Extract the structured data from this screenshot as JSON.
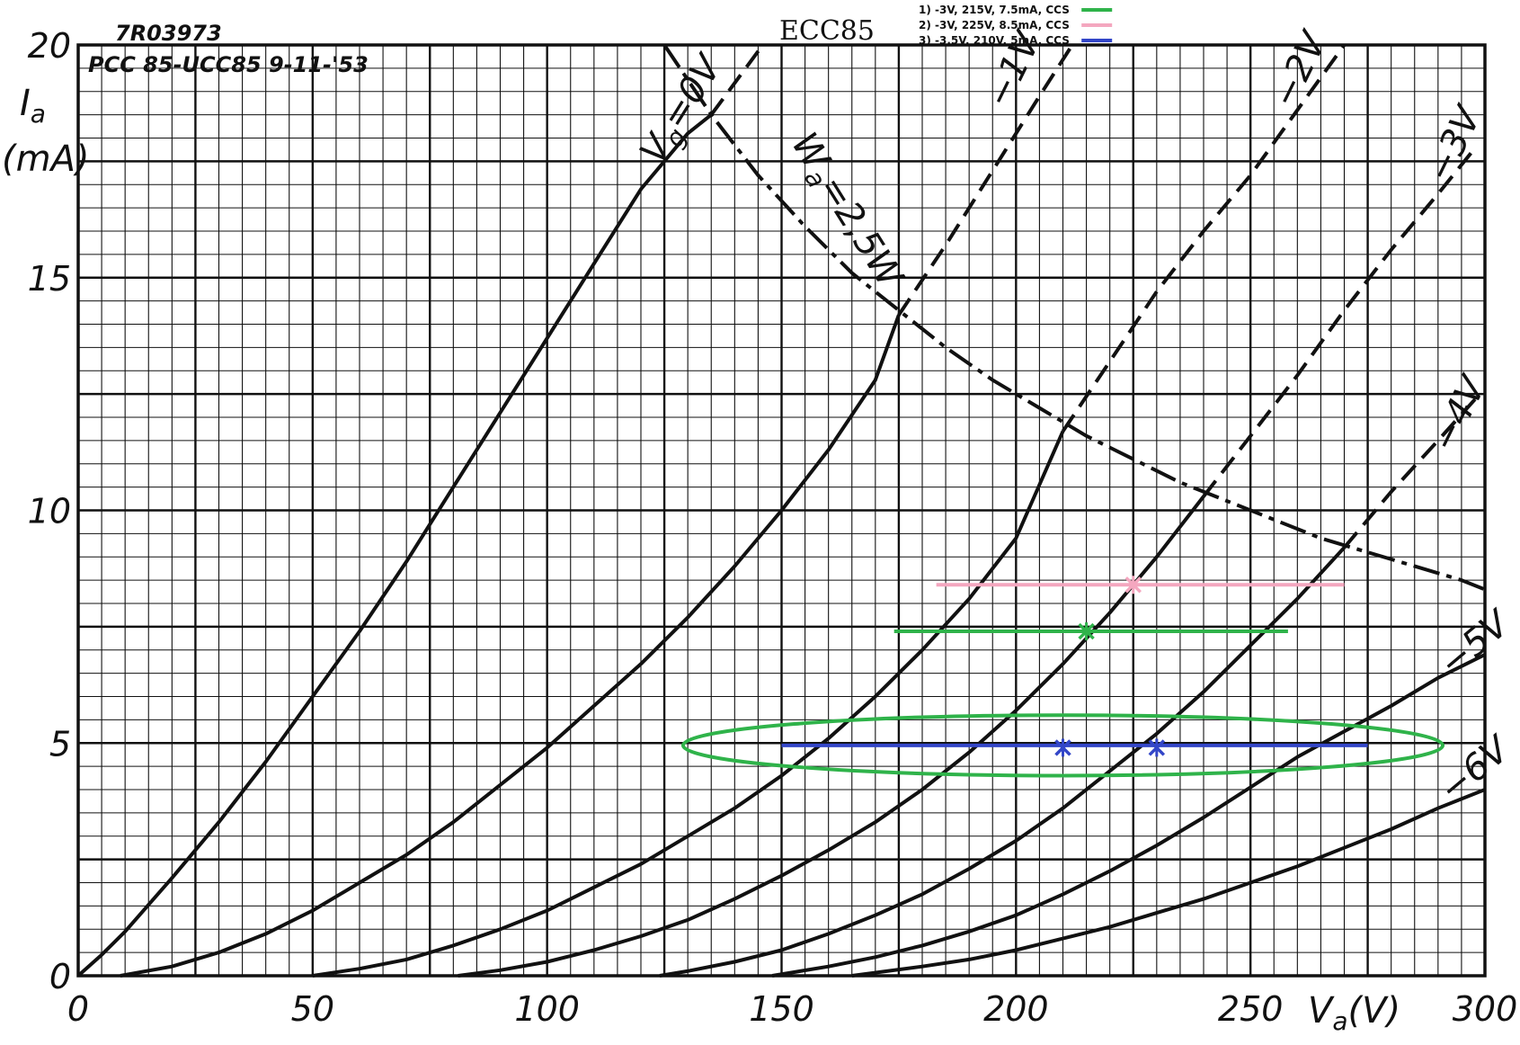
{
  "chart_data": {
    "type": "line",
    "title": "ECC85",
    "stamp": [
      "7R03973",
      "PCC 85-UCC85 9-11-'53"
    ],
    "xlabel": "V_a(V)",
    "ylabel": "I_a (mA)",
    "ylabel_symbol": "I",
    "ylabel_sub": "a",
    "ylabel_unit": "(mA)",
    "xlabel_symbol": "V",
    "xlabel_sub": "a",
    "xlabel_unit": "(V)",
    "xlim": [
      0,
      300
    ],
    "ylim": [
      0,
      20
    ],
    "x_ticks": [
      0,
      50,
      100,
      150,
      200,
      250,
      300
    ],
    "y_ticks": [
      0,
      5,
      10,
      15,
      20
    ],
    "x_tick_labels": [
      "0",
      "50",
      "100",
      "150",
      "200",
      "250",
      "300"
    ],
    "y_tick_labels": [
      "0",
      "5",
      "10",
      "15",
      "20"
    ],
    "grid": {
      "minor_x_step": 5,
      "minor_y_step": 0.5,
      "major_x_step": 25,
      "major_y_step": 2.5
    },
    "series": [
      {
        "name": "Vg=0V",
        "label_main": "V",
        "label_sub": "g",
        "label_rest": "=0V",
        "label_at": [
          124,
          17.4
        ],
        "label_angle": -58,
        "solid_x": [
          0,
          5,
          10,
          20,
          30,
          40,
          50,
          60,
          70,
          80,
          90,
          100,
          110,
          120,
          130,
          135
        ],
        "solid_y": [
          0,
          0.45,
          0.95,
          2.1,
          3.3,
          4.6,
          6.0,
          7.4,
          8.9,
          10.5,
          12.1,
          13.7,
          15.3,
          16.9,
          18.1,
          18.5
        ],
        "dashed_x": [
          135,
          146
        ],
        "dashed_y": [
          18.5,
          20.0
        ]
      },
      {
        "name": "-1V",
        "label_main": "−1V",
        "label_at": [
          198,
          18.6
        ],
        "label_angle": -64,
        "solid_x": [
          9,
          20,
          30,
          40,
          50,
          60,
          70,
          80,
          90,
          100,
          110,
          120,
          130,
          140,
          150,
          160,
          170,
          175
        ],
        "solid_y": [
          0,
          0.2,
          0.5,
          0.9,
          1.4,
          2.0,
          2.6,
          3.3,
          4.1,
          4.9,
          5.8,
          6.7,
          7.7,
          8.8,
          10.0,
          11.3,
          12.8,
          14.2
        ],
        "dashed_x": [
          175,
          185,
          195,
          205,
          212
        ],
        "dashed_y": [
          14.2,
          15.7,
          17.3,
          18.9,
          20.0
        ]
      },
      {
        "name": "-2V",
        "label_main": "−2V",
        "label_at": [
          259,
          18.6
        ],
        "label_angle": -64,
        "solid_x": [
          50,
          60,
          70,
          80,
          90,
          100,
          110,
          120,
          130,
          140,
          150,
          160,
          170,
          180,
          190,
          200,
          210
        ],
        "solid_y": [
          0,
          0.15,
          0.35,
          0.65,
          1.0,
          1.4,
          1.9,
          2.4,
          3.0,
          3.6,
          4.3,
          5.1,
          6.0,
          7.0,
          8.1,
          9.4,
          11.7
        ],
        "dashed_x": [
          210,
          220,
          230,
          240,
          250,
          260,
          270
        ],
        "dashed_y": [
          11.7,
          13.2,
          14.7,
          16.0,
          17.2,
          18.6,
          20.0
        ]
      },
      {
        "name": "-3V",
        "label_main": "−3V",
        "label_at": [
          292,
          17.0
        ],
        "label_angle": -64,
        "solid_x": [
          81,
          90,
          100,
          110,
          120,
          130,
          140,
          150,
          160,
          170,
          180,
          190,
          200,
          210,
          220,
          230,
          240
        ],
        "solid_y": [
          0,
          0.12,
          0.3,
          0.55,
          0.85,
          1.2,
          1.65,
          2.15,
          2.7,
          3.3,
          4.0,
          4.8,
          5.7,
          6.7,
          7.8,
          9.0,
          10.3
        ],
        "dashed_x": [
          240,
          250,
          260,
          270,
          280,
          290,
          298
        ],
        "dashed_y": [
          10.3,
          11.6,
          12.9,
          14.3,
          15.6,
          16.8,
          17.8
        ]
      },
      {
        "name": "-4V",
        "label_main": "−4V",
        "label_at": [
          293,
          11.2
        ],
        "label_angle": -64,
        "solid_x": [
          124,
          130,
          140,
          150,
          160,
          170,
          180,
          190,
          200,
          210,
          220,
          230,
          240,
          250,
          260,
          270
        ],
        "solid_y": [
          0,
          0.1,
          0.3,
          0.55,
          0.9,
          1.3,
          1.75,
          2.3,
          2.9,
          3.6,
          4.4,
          5.2,
          6.1,
          7.1,
          8.1,
          9.2
        ],
        "dashed_x": [
          270,
          280,
          290,
          298
        ],
        "dashed_y": [
          9.2,
          10.4,
          11.5,
          12.4
        ]
      },
      {
        "name": "-5V",
        "label_main": "−5V",
        "label_at": [
          293,
          6.4
        ],
        "label_angle": -40,
        "solid_x": [
          148,
          160,
          170,
          180,
          190,
          200,
          210,
          220,
          230,
          240,
          250,
          260,
          270,
          280,
          290,
          300
        ],
        "solid_y": [
          0,
          0.2,
          0.4,
          0.65,
          0.95,
          1.3,
          1.75,
          2.25,
          2.8,
          3.4,
          4.05,
          4.7,
          5.25,
          5.8,
          6.4,
          6.9
        ],
        "dashed_x": [],
        "dashed_y": []
      },
      {
        "name": "-6V",
        "label_main": "−6V",
        "label_at": [
          293,
          3.7
        ],
        "label_angle": -40,
        "solid_x": [
          165,
          180,
          190,
          200,
          210,
          220,
          230,
          240,
          250,
          260,
          270,
          280,
          290,
          300
        ],
        "solid_y": [
          0,
          0.2,
          0.35,
          0.55,
          0.8,
          1.05,
          1.35,
          1.65,
          2.0,
          2.35,
          2.75,
          3.15,
          3.6,
          4.0
        ],
        "dashed_x": [],
        "dashed_y": []
      }
    ],
    "power_curve": {
      "name": "Wa=2,5W",
      "label_main": "W",
      "label_sub": "a",
      "label_rest": "=2,5W",
      "label_at": [
        152,
        17.9
      ],
      "label_angle": 58,
      "x": [
        125,
        135,
        145,
        155,
        165,
        175,
        185,
        195,
        205,
        215,
        225,
        235,
        245,
        255,
        265,
        275,
        285,
        295,
        300
      ],
      "y": [
        20.0,
        18.5,
        17.2,
        16.1,
        15.1,
        14.3,
        13.5,
        12.8,
        12.2,
        11.6,
        11.1,
        10.6,
        10.2,
        9.8,
        9.4,
        9.1,
        8.8,
        8.5,
        8.3
      ]
    },
    "load_lines": [
      {
        "name": "1) -3V, 215V, 7.5mA, CCS",
        "color": "#2fb34a",
        "x": [
          174,
          258
        ],
        "y": [
          7.4,
          7.4
        ],
        "marker": [
          215,
          7.4
        ]
      },
      {
        "name": "2) -3V, 225V, 8.5mA, CCS",
        "color": "#f4a7bf",
        "x": [
          183,
          270
        ],
        "y": [
          8.4,
          8.4
        ],
        "marker": [
          225,
          8.4
        ]
      },
      {
        "name": "3) -3.5V, 210V, 5mA, CCS",
        "color": "#3346c8",
        "x": [
          150,
          275
        ],
        "y": [
          4.95,
          4.95
        ],
        "markers": [
          [
            210,
            4.9
          ],
          [
            230,
            4.9
          ]
        ]
      }
    ],
    "ellipse": {
      "color": "#2fb34a",
      "center": [
        210,
        4.95
      ],
      "rx": 81,
      "ry": 0.65
    },
    "legend": {
      "placement": "top-right",
      "entries": [
        {
          "label": "1) -3V, 215V, 7.5mA, CCS",
          "color": "#2fb34a"
        },
        {
          "label": "2) -3V, 225V, 8.5mA, CCS",
          "color": "#f4a7bf"
        },
        {
          "label": "3) -3.5V, 210V, 5mA, CCS",
          "color": "#3346c8"
        }
      ]
    }
  }
}
